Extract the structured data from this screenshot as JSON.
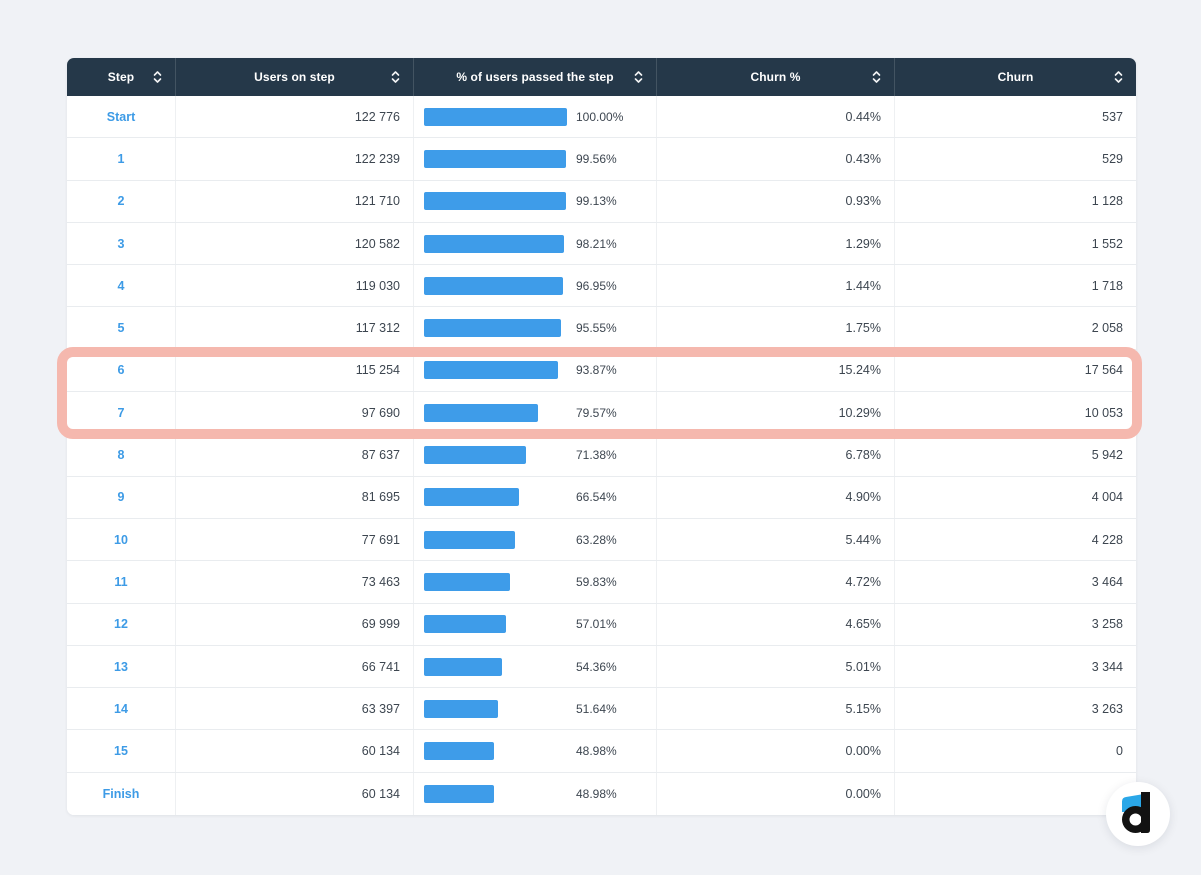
{
  "table": {
    "columns": [
      {
        "id": "step",
        "label": "Step"
      },
      {
        "id": "users",
        "label": "Users on step"
      },
      {
        "id": "passed",
        "label": "% of users passed the step"
      },
      {
        "id": "churn_pct",
        "label": "Churn %"
      },
      {
        "id": "churn",
        "label": "Churn"
      }
    ],
    "rows": [
      {
        "step": "Start",
        "users": "122 776",
        "passed_label": "100.00%",
        "passed_value": 100.0,
        "churn_pct": "0.44%",
        "churn": "537",
        "highlighted": false
      },
      {
        "step": "1",
        "users": "122 239",
        "passed_label": "99.56%",
        "passed_value": 99.56,
        "churn_pct": "0.43%",
        "churn": "529",
        "highlighted": false
      },
      {
        "step": "2",
        "users": "121 710",
        "passed_label": "99.13%",
        "passed_value": 99.13,
        "churn_pct": "0.93%",
        "churn": "1 128",
        "highlighted": false
      },
      {
        "step": "3",
        "users": "120 582",
        "passed_label": "98.21%",
        "passed_value": 98.21,
        "churn_pct": "1.29%",
        "churn": "1 552",
        "highlighted": false
      },
      {
        "step": "4",
        "users": "119 030",
        "passed_label": "96.95%",
        "passed_value": 96.95,
        "churn_pct": "1.44%",
        "churn": "1 718",
        "highlighted": false
      },
      {
        "step": "5",
        "users": "117 312",
        "passed_label": "95.55%",
        "passed_value": 95.55,
        "churn_pct": "1.75%",
        "churn": "2 058",
        "highlighted": false
      },
      {
        "step": "6",
        "users": "115 254",
        "passed_label": "93.87%",
        "passed_value": 93.87,
        "churn_pct": "15.24%",
        "churn": "17 564",
        "highlighted": true
      },
      {
        "step": "7",
        "users": "97 690",
        "passed_label": "79.57%",
        "passed_value": 79.57,
        "churn_pct": "10.29%",
        "churn": "10 053",
        "highlighted": true
      },
      {
        "step": "8",
        "users": "87 637",
        "passed_label": "71.38%",
        "passed_value": 71.38,
        "churn_pct": "6.78%",
        "churn": "5 942",
        "highlighted": false
      },
      {
        "step": "9",
        "users": "81 695",
        "passed_label": "66.54%",
        "passed_value": 66.54,
        "churn_pct": "4.90%",
        "churn": "4 004",
        "highlighted": false
      },
      {
        "step": "10",
        "users": "77 691",
        "passed_label": "63.28%",
        "passed_value": 63.28,
        "churn_pct": "5.44%",
        "churn": "4 228",
        "highlighted": false
      },
      {
        "step": "11",
        "users": "73 463",
        "passed_label": "59.83%",
        "passed_value": 59.83,
        "churn_pct": "4.72%",
        "churn": "3 464",
        "highlighted": false
      },
      {
        "step": "12",
        "users": "69 999",
        "passed_label": "57.01%",
        "passed_value": 57.01,
        "churn_pct": "4.65%",
        "churn": "3 258",
        "highlighted": false
      },
      {
        "step": "13",
        "users": "66 741",
        "passed_label": "54.36%",
        "passed_value": 54.36,
        "churn_pct": "5.01%",
        "churn": "3 344",
        "highlighted": false
      },
      {
        "step": "14",
        "users": "63 397",
        "passed_label": "51.64%",
        "passed_value": 51.64,
        "churn_pct": "5.15%",
        "churn": "3 263",
        "highlighted": false
      },
      {
        "step": "15",
        "users": "60 134",
        "passed_label": "48.98%",
        "passed_value": 48.98,
        "churn_pct": "0.00%",
        "churn": "0",
        "highlighted": false
      },
      {
        "step": "Finish",
        "users": "60 134",
        "passed_label": "48.98%",
        "passed_value": 48.98,
        "churn_pct": "0.00%",
        "churn": "",
        "highlighted": false
      }
    ]
  },
  "annotation": {
    "type": "highlight-box",
    "highlighted_steps": [
      "6",
      "7"
    ],
    "color": "#f5b8ae"
  },
  "logo": {
    "name": "devtodev",
    "letter": "d"
  },
  "colors": {
    "page_background": "#f0f2f6",
    "header_background": "#253849",
    "accent_blue": "#3d9be6",
    "bar_blue": "#3e9ce9",
    "highlight_salmon": "#f5b8ae",
    "text_dark": "#3d4650"
  }
}
